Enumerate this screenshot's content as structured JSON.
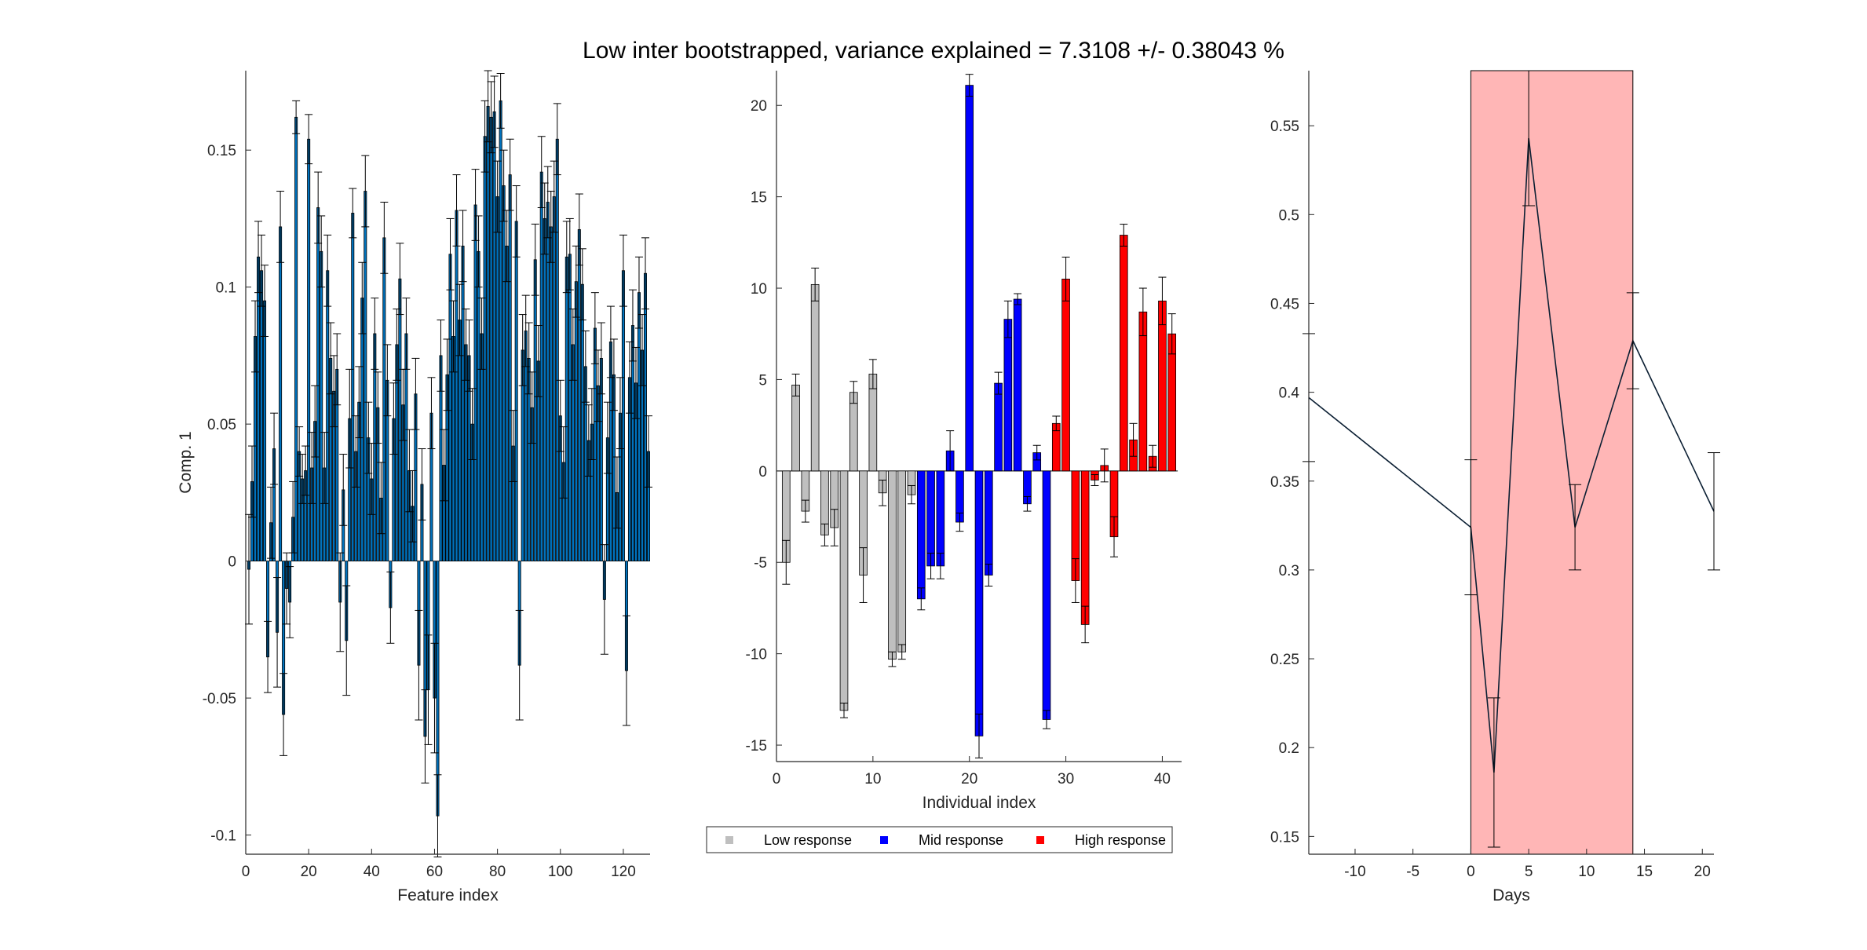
{
  "colors": {
    "features_bar": "#0072BD",
    "features_edge": "#000000",
    "low": "#BFBFBF",
    "mid": "#0000FF",
    "high": "#FF0000",
    "shade": "#FFB6B6",
    "line": "#0B1F33"
  },
  "figure": {
    "title": "Low inter bootstrapped, variance explained = 7.3108 +/- 0.38043 %"
  },
  "chart_data": [
    {
      "id": "features",
      "type": "bar",
      "xlabel": "Feature index",
      "ylabel": "Comp. 1",
      "xlim": [
        0,
        128.5
      ],
      "ylim": [
        -0.107,
        0.179
      ],
      "xticks": [
        0,
        20,
        40,
        60,
        80,
        100,
        120
      ],
      "xticklabels": [
        "0",
        "20",
        "40",
        "60",
        "80",
        "100",
        "120"
      ],
      "yticks": [
        -0.1,
        -0.05,
        0,
        0.05,
        0.1,
        0.15
      ],
      "yticklabels": [
        "-0.1",
        "-0.05",
        "0",
        "0.05",
        "0.1",
        "0.15"
      ],
      "x": [
        1,
        2,
        3,
        4,
        5,
        6,
        7,
        8,
        9,
        10,
        11,
        12,
        13,
        14,
        15,
        16,
        17,
        18,
        19,
        20,
        21,
        22,
        23,
        24,
        25,
        26,
        27,
        28,
        29,
        30,
        31,
        32,
        33,
        34,
        35,
        36,
        37,
        38,
        39,
        40,
        41,
        42,
        43,
        44,
        45,
        46,
        47,
        48,
        49,
        50,
        51,
        52,
        53,
        54,
        55,
        56,
        57,
        58,
        59,
        60,
        61,
        62,
        63,
        64,
        65,
        66,
        67,
        68,
        69,
        70,
        71,
        72,
        73,
        74,
        75,
        76,
        77,
        78,
        79,
        80,
        81,
        82,
        83,
        84,
        85,
        86,
        87,
        88,
        89,
        90,
        91,
        92,
        93,
        94,
        95,
        96,
        97,
        98,
        99,
        100,
        101,
        102,
        103,
        104,
        105,
        106,
        107,
        108,
        109,
        110,
        111,
        112,
        113,
        114,
        115,
        116,
        117,
        118,
        119,
        120,
        121,
        122,
        123,
        124,
        125,
        126,
        127,
        128
      ],
      "values": [
        -0.003,
        0.029,
        0.082,
        0.111,
        0.106,
        0.095,
        -0.035,
        0.014,
        0.041,
        -0.026,
        0.122,
        -0.056,
        -0.01,
        -0.015,
        0.016,
        0.162,
        0.04,
        0.03,
        0.033,
        0.154,
        0.034,
        0.051,
        0.129,
        0.113,
        0.034,
        0.106,
        0.074,
        0.062,
        0.07,
        -0.015,
        0.026,
        -0.029,
        0.052,
        0.127,
        0.04,
        0.058,
        0.096,
        0.135,
        0.045,
        0.03,
        0.083,
        0.056,
        0.023,
        0.118,
        0.066,
        -0.017,
        0.052,
        0.079,
        0.103,
        0.057,
        0.083,
        0.033,
        0.02,
        0.061,
        -0.038,
        0.028,
        -0.064,
        -0.047,
        0.054,
        -0.05,
        -0.093,
        0.075,
        0.035,
        0.068,
        0.112,
        0.082,
        0.128,
        0.088,
        0.115,
        0.079,
        0.075,
        0.05,
        0.13,
        0.113,
        0.083,
        0.155,
        0.166,
        0.162,
        0.164,
        0.133,
        0.168,
        0.137,
        0.115,
        0.141,
        0.042,
        0.124,
        -0.038,
        0.077,
        0.084,
        0.074,
        0.056,
        0.11,
        0.073,
        0.142,
        0.125,
        0.131,
        0.122,
        0.133,
        0.154,
        0.053,
        0.036,
        0.111,
        0.112,
        0.079,
        0.102,
        0.121,
        0.101,
        0.071,
        0.044,
        0.05,
        0.085,
        0.064,
        0.074,
        -0.014,
        0.045,
        0.08,
        0.068,
        0.025,
        0.054,
        0.106,
        -0.04,
        0.067,
        0.086,
        0.065,
        0.098,
        0.077,
        0.105,
        0.04
      ],
      "errors": [
        0.02,
        0.013,
        0.013,
        0.013,
        0.013,
        0.013,
        0.013,
        0.013,
        0.013,
        0.02,
        0.013,
        0.015,
        0.013,
        0.013,
        0.013,
        0.006,
        0.009,
        0.009,
        0.009,
        0.009,
        0.013,
        0.013,
        0.013,
        0.013,
        0.013,
        0.013,
        0.013,
        0.013,
        0.013,
        0.018,
        0.013,
        0.02,
        0.018,
        0.009,
        0.013,
        0.013,
        0.013,
        0.013,
        0.013,
        0.013,
        0.013,
        0.013,
        0.013,
        0.013,
        0.013,
        0.013,
        0.013,
        0.013,
        0.013,
        0.013,
        0.013,
        0.015,
        0.013,
        0.013,
        0.02,
        0.013,
        0.017,
        0.02,
        0.013,
        0.02,
        0.015,
        0.013,
        0.013,
        0.013,
        0.013,
        0.013,
        0.013,
        0.013,
        0.013,
        0.013,
        0.013,
        0.013,
        0.013,
        0.013,
        0.013,
        0.013,
        0.013,
        0.013,
        0.013,
        0.013,
        0.01,
        0.013,
        0.013,
        0.013,
        0.013,
        0.013,
        0.02,
        0.013,
        0.013,
        0.013,
        0.013,
        0.013,
        0.013,
        0.013,
        0.013,
        0.013,
        0.013,
        0.013,
        0.013,
        0.013,
        0.013,
        0.013,
        0.013,
        0.013,
        0.013,
        0.013,
        0.013,
        0.013,
        0.013,
        0.013,
        0.013,
        0.013,
        0.013,
        0.02,
        0.013,
        0.013,
        0.013,
        0.013,
        0.013,
        0.013,
        0.02,
        0.013,
        0.013,
        0.013,
        0.013,
        0.013,
        0.013,
        0.013
      ]
    },
    {
      "id": "individuals",
      "type": "bar",
      "xlabel": "Individual index",
      "ylabel": "",
      "xlim": [
        0,
        42
      ],
      "ylim": [
        -15.9,
        21.9
      ],
      "xticks": [
        0,
        10,
        20,
        30,
        40
      ],
      "xticklabels": [
        "0",
        "10",
        "20",
        "30",
        "40"
      ],
      "yticks": [
        -15,
        -10,
        -5,
        0,
        5,
        10,
        15,
        20
      ],
      "yticklabels": [
        "-15",
        "-10",
        "-5",
        "0",
        "5",
        "10",
        "15",
        "20"
      ],
      "x": [
        1,
        2,
        3,
        4,
        5,
        6,
        7,
        8,
        9,
        10,
        11,
        12,
        13,
        14,
        15,
        16,
        17,
        18,
        19,
        20,
        21,
        22,
        23,
        24,
        25,
        26,
        27,
        28,
        29,
        30,
        31,
        32,
        33,
        34,
        35,
        36,
        37,
        38,
        39,
        40,
        41
      ],
      "values": [
        -5,
        4.7,
        -2.2,
        10.2,
        -3.5,
        -3.1,
        -13.1,
        4.3,
        -5.7,
        5.3,
        -1.2,
        -10.3,
        -9.9,
        -1.3,
        -7,
        -5.2,
        -5.2,
        1.1,
        -2.8,
        21.1,
        -14.5,
        -5.7,
        4.8,
        8.3,
        9.4,
        -1.8,
        1,
        -13.6,
        2.6,
        10.5,
        -6,
        -8.4,
        -0.5,
        0.3,
        -3.6,
        12.9,
        1.7,
        8.7,
        0.8,
        9.3,
        7.5
      ],
      "errors": [
        1.2,
        0.6,
        0.6,
        0.9,
        0.6,
        1,
        0.4,
        0.6,
        1.5,
        0.8,
        0.7,
        0.4,
        0.4,
        0.5,
        0.6,
        0.7,
        0.7,
        1.1,
        0.5,
        0.6,
        1.2,
        0.6,
        0.6,
        1,
        0.3,
        0.4,
        0.4,
        0.5,
        0.4,
        1.2,
        1.2,
        1,
        0.3,
        0.9,
        1.1,
        0.6,
        0.9,
        1.3,
        0.6,
        1.3,
        1.1
      ],
      "groups": [
        "low",
        "low",
        "low",
        "low",
        "low",
        "low",
        "low",
        "low",
        "low",
        "low",
        "low",
        "low",
        "low",
        "low",
        "mid",
        "mid",
        "mid",
        "mid",
        "mid",
        "mid",
        "mid",
        "mid",
        "mid",
        "mid",
        "mid",
        "mid",
        "mid",
        "mid",
        "high",
        "high",
        "high",
        "high",
        "high",
        "high",
        "high",
        "high",
        "high",
        "high",
        "high",
        "high",
        "high"
      ],
      "legend": {
        "position": "bottom-outside",
        "entries": [
          {
            "group": "low",
            "label": "Low response"
          },
          {
            "group": "mid",
            "label": "Mid response"
          },
          {
            "group": "high",
            "label": "High response"
          }
        ]
      }
    },
    {
      "id": "days",
      "type": "line",
      "xlabel": "Days",
      "ylabel": "",
      "xlim": [
        -14,
        21
      ],
      "ylim": [
        0.14,
        0.581
      ],
      "xticks": [
        -10,
        -5,
        0,
        5,
        10,
        15,
        20
      ],
      "xticklabels": [
        "-10",
        "-5",
        "0",
        "5",
        "10",
        "15",
        "20"
      ],
      "yticks": [
        0.15,
        0.2,
        0.25,
        0.3,
        0.35,
        0.4,
        0.45,
        0.5,
        0.55
      ],
      "yticklabels": [
        "0.15",
        "0.2",
        "0.25",
        "0.3",
        "0.35",
        "0.4",
        "0.45",
        "0.5",
        "0.55"
      ],
      "shaded_region": [
        0,
        14
      ],
      "x": [
        -14,
        0,
        2,
        5,
        9,
        14,
        21
      ],
      "values": [
        0.397,
        0.324,
        0.186,
        0.543,
        0.324,
        0.429,
        0.333
      ],
      "errors": [
        0.036,
        0.038,
        0.042,
        0.038,
        0.024,
        0.027,
        0.033
      ]
    }
  ]
}
